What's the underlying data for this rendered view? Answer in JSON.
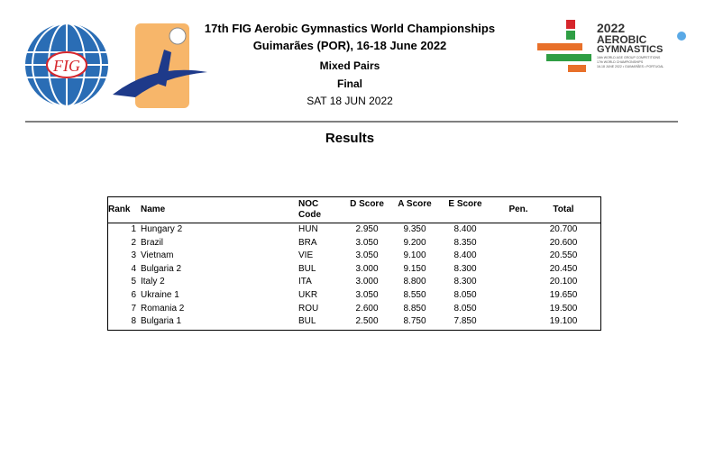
{
  "header": {
    "title": "17th FIG Aerobic Gymnastics World Championships",
    "venue": "Guimarães (POR), 16-18 June 2022",
    "event": "Mixed Pairs",
    "phase": "Final",
    "date": "SAT 18 JUN 2022"
  },
  "logos": {
    "fig": "FIG",
    "event_year": "2022",
    "event_line1": "AEROBIC",
    "event_line2": "GYMNASTICS",
    "event_small1": "16th WORLD AGE GROUP COMPETITIONS",
    "event_small2": "17th WORLD CHAMPIONSHIPS",
    "event_small3": "16-18 JUNE 2022 • GUIMARÃES • PORTUGAL"
  },
  "section_title": "Results",
  "table": {
    "columns": {
      "rank": "Rank",
      "name": "Name",
      "noc": "NOC Code",
      "d": "D Score",
      "a": "A Score",
      "e": "E Score",
      "pen": "Pen.",
      "total": "Total"
    },
    "rows": [
      {
        "rank": "1",
        "name": "Hungary 2",
        "noc": "HUN",
        "d": "2.950",
        "a": "9.350",
        "e": "8.400",
        "total": "20.700"
      },
      {
        "rank": "2",
        "name": "Brazil",
        "noc": "BRA",
        "d": "3.050",
        "a": "9.200",
        "e": "8.350",
        "total": "20.600"
      },
      {
        "rank": "3",
        "name": "Vietnam",
        "noc": "VIE",
        "d": "3.050",
        "a": "9.100",
        "e": "8.400",
        "total": "20.550"
      },
      {
        "rank": "4",
        "name": "Bulgaria 2",
        "noc": "BUL",
        "d": "3.000",
        "a": "9.150",
        "e": "8.300",
        "total": "20.450"
      },
      {
        "rank": "5",
        "name": "Italy 2",
        "noc": "ITA",
        "d": "3.000",
        "a": "8.800",
        "e": "8.300",
        "total": "20.100"
      },
      {
        "rank": "6",
        "name": "Ukraine 1",
        "noc": "UKR",
        "d": "3.050",
        "a": "8.550",
        "e": "8.050",
        "total": "19.650"
      },
      {
        "rank": "7",
        "name": "Romania 2",
        "noc": "ROU",
        "d": "2.600",
        "a": "8.850",
        "e": "8.050",
        "total": "19.500"
      },
      {
        "rank": "8",
        "name": "Bulgaria 1",
        "noc": "BUL",
        "d": "2.500",
        "a": "8.750",
        "e": "7.850",
        "total": "19.100"
      }
    ]
  }
}
